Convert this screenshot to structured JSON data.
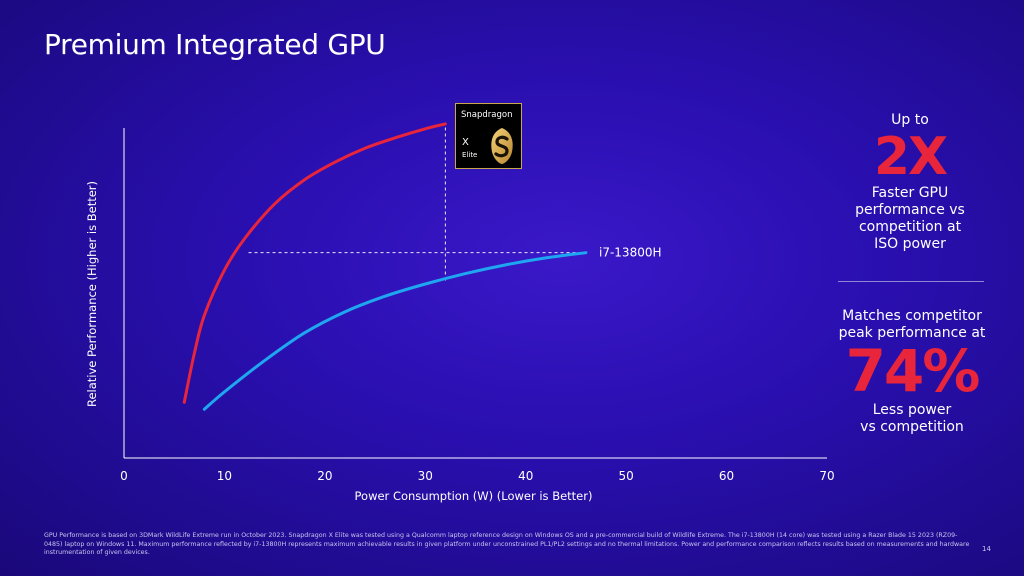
{
  "slide": {
    "title": "Premium Integrated GPU",
    "page_number": "14",
    "footnote": "GPU Performance is based on 3DMark WildLife Extreme run in October 2023. Snapdragon X Elite was tested using a Qualcomm laptop reference design on Windows OS and a pre-commercial build of Wildlife Extreme. The i7-13800H (14 core) was tested using a Razer Blade 15 2023 (RZ09-0485) laptop on Windows 11. Maximum performance reflected by  i7-13800H represents maximum achievable results in given platform under unconstrained PL1/PL2 settings and no thermal limitations. Power and performance comparison reflects results based on measurements and hardware instrumentation of given devices."
  },
  "logo": {
    "brand": "Snapdragon",
    "line1": "X",
    "line2": "Elite"
  },
  "stats": {
    "first": {
      "prefix": "Up to",
      "value": "2X",
      "description_lines": [
        "Faster GPU",
        "performance vs",
        "competition at",
        "ISO power"
      ]
    },
    "second": {
      "prefix_lines": [
        "Matches competitor",
        "peak performance at"
      ],
      "value": "74%",
      "description_lines": [
        "Less power",
        "vs competition"
      ]
    }
  },
  "colors": {
    "snapdragon_series": "#e8253a",
    "competitor_series": "#1ea7f0",
    "axis": "#ffffff",
    "guide": "#ffffff",
    "highlight": "#e8253a"
  },
  "chart_data": {
    "type": "line",
    "xlabel": "Power Consumption (W) (Lower is Better)",
    "ylabel": "Relative Performance  (Higher is Better)",
    "xlim": [
      0,
      70
    ],
    "ylim": [
      0,
      100
    ],
    "x_ticks": [
      0,
      10,
      20,
      30,
      40,
      50,
      60,
      70
    ],
    "y_tick_labels_shown": false,
    "grid": false,
    "series": [
      {
        "name": "",
        "color_key": "snapdragon_series",
        "x": [
          6,
          7,
          8,
          10,
          12,
          15,
          18,
          21,
          24,
          27,
          30,
          32
        ],
        "y": [
          16,
          30,
          41,
          54,
          63,
          73,
          80,
          85,
          89,
          92,
          94.6,
          96
        ]
      },
      {
        "name": "i7-13800H",
        "color_key": "competitor_series",
        "x": [
          8,
          10,
          14,
          18,
          22,
          26,
          30,
          34,
          38,
          42,
          46
        ],
        "y": [
          14,
          19,
          28,
          36,
          42,
          46.5,
          50,
          53,
          55.5,
          57.5,
          59
        ]
      }
    ],
    "guides": [
      {
        "kind": "horizontal",
        "y": 59,
        "x_from": 12.4,
        "x_to": 46
      },
      {
        "kind": "vertical",
        "x": 32,
        "y_from": 51,
        "y_to": 96
      }
    ],
    "annotations": [
      {
        "text": "i7-13800H",
        "x": 47,
        "y": 59
      }
    ]
  }
}
